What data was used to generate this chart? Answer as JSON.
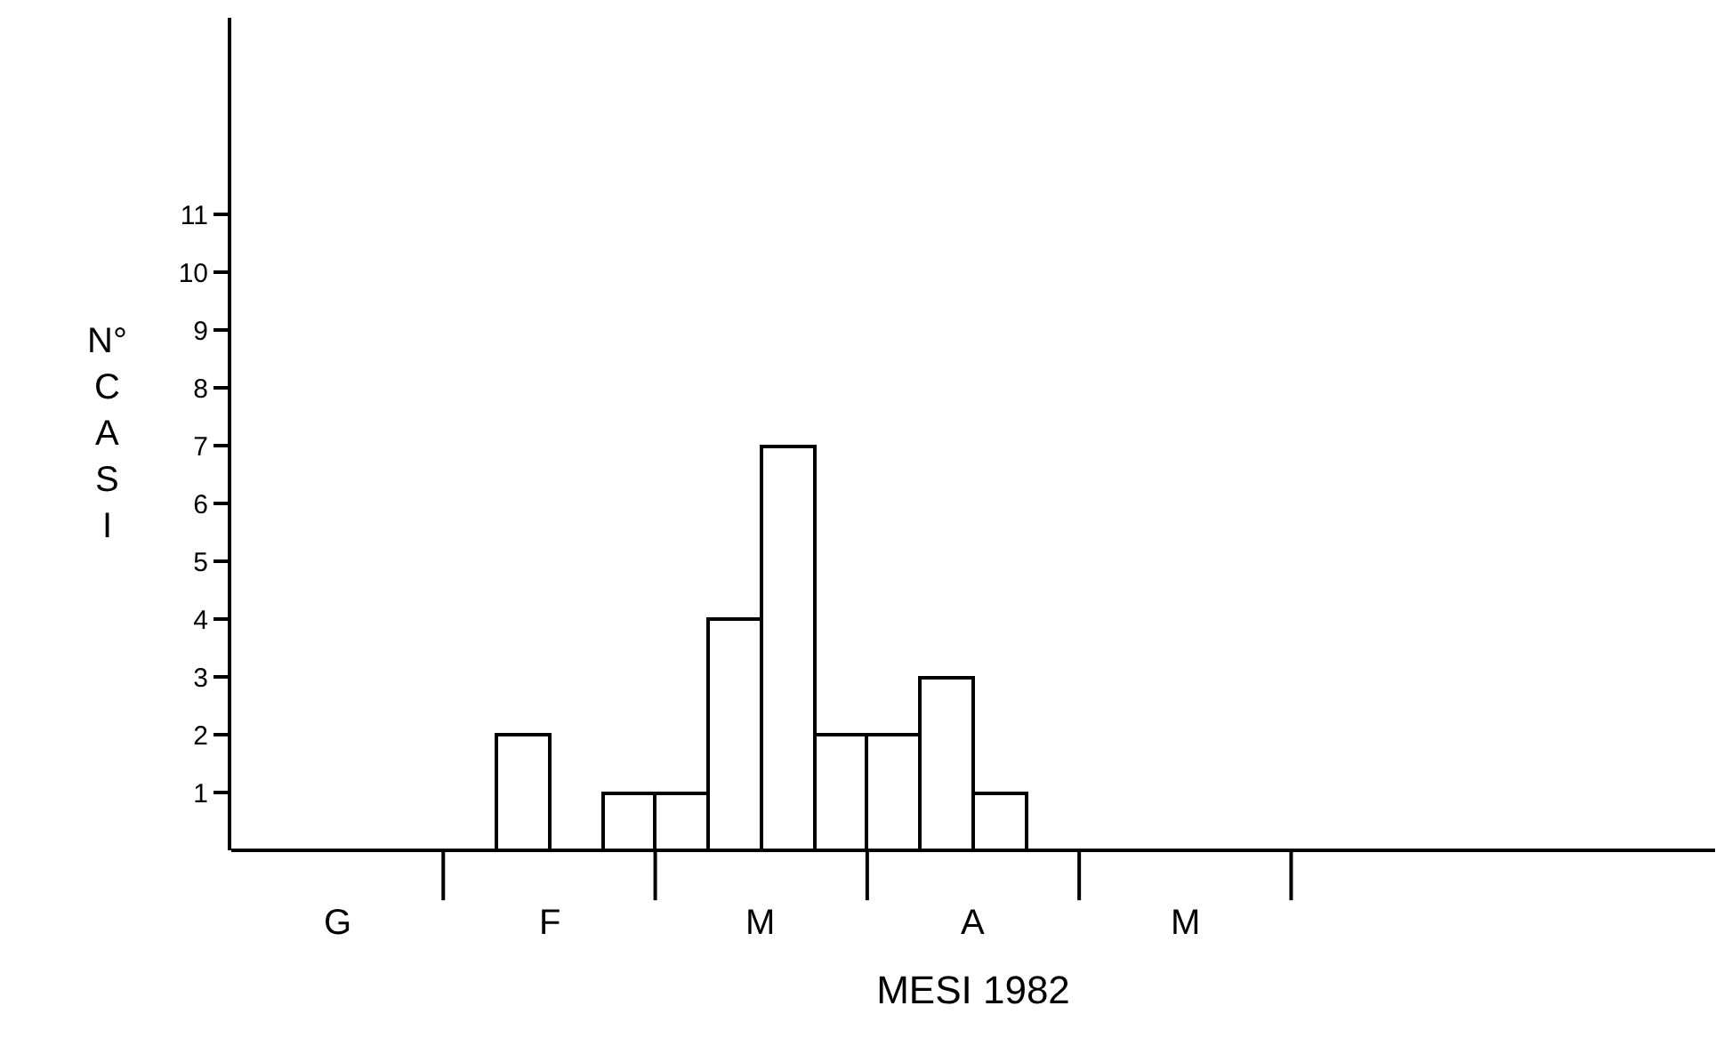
{
  "chart_data": {
    "type": "bar",
    "ylabel": "N° CASI",
    "xlabel": "MESI 1982",
    "categories": [
      null,
      null,
      null,
      null,
      null,
      null,
      null,
      null,
      null,
      null,
      null,
      null,
      null,
      null,
      null,
      null,
      null,
      null,
      null,
      null,
      null,
      null,
      null,
      null,
      null,
      null,
      null,
      null
    ],
    "values": [
      null,
      null,
      null,
      null,
      null,
      2,
      null,
      1,
      1,
      4,
      7,
      2,
      2,
      3,
      1,
      null,
      null,
      null,
      null,
      null,
      null,
      null,
      null,
      null,
      null,
      null,
      null,
      null
    ],
    "color": "#ffffff",
    "annotations": [
      "G",
      "F",
      "M",
      "A",
      "M"
    ],
    "ylim": [
      0,
      14.4
    ],
    "yticks": [
      1,
      2,
      3,
      4,
      5,
      6,
      7,
      8,
      9,
      10,
      11
    ]
  }
}
